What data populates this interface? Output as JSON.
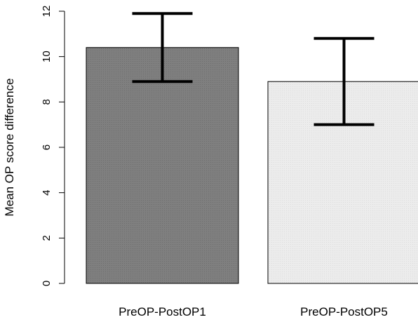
{
  "chart_data": {
    "type": "bar",
    "title": "",
    "xlabel": "",
    "ylabel": "Mean OP score difference",
    "ylim": [
      0,
      12
    ],
    "yticks": [
      0,
      2,
      4,
      6,
      8,
      10,
      12
    ],
    "grid": false,
    "categories": [
      "PreOP-PostOP1",
      "PreOP-PostOP5"
    ],
    "values": [
      10.4,
      8.9
    ],
    "error_low": [
      8.9,
      7.0
    ],
    "error_high": [
      11.9,
      10.8
    ],
    "colors": [
      "#808080",
      "#ececec"
    ],
    "bar_border": "#000000",
    "error_bar_color": "#000000"
  }
}
